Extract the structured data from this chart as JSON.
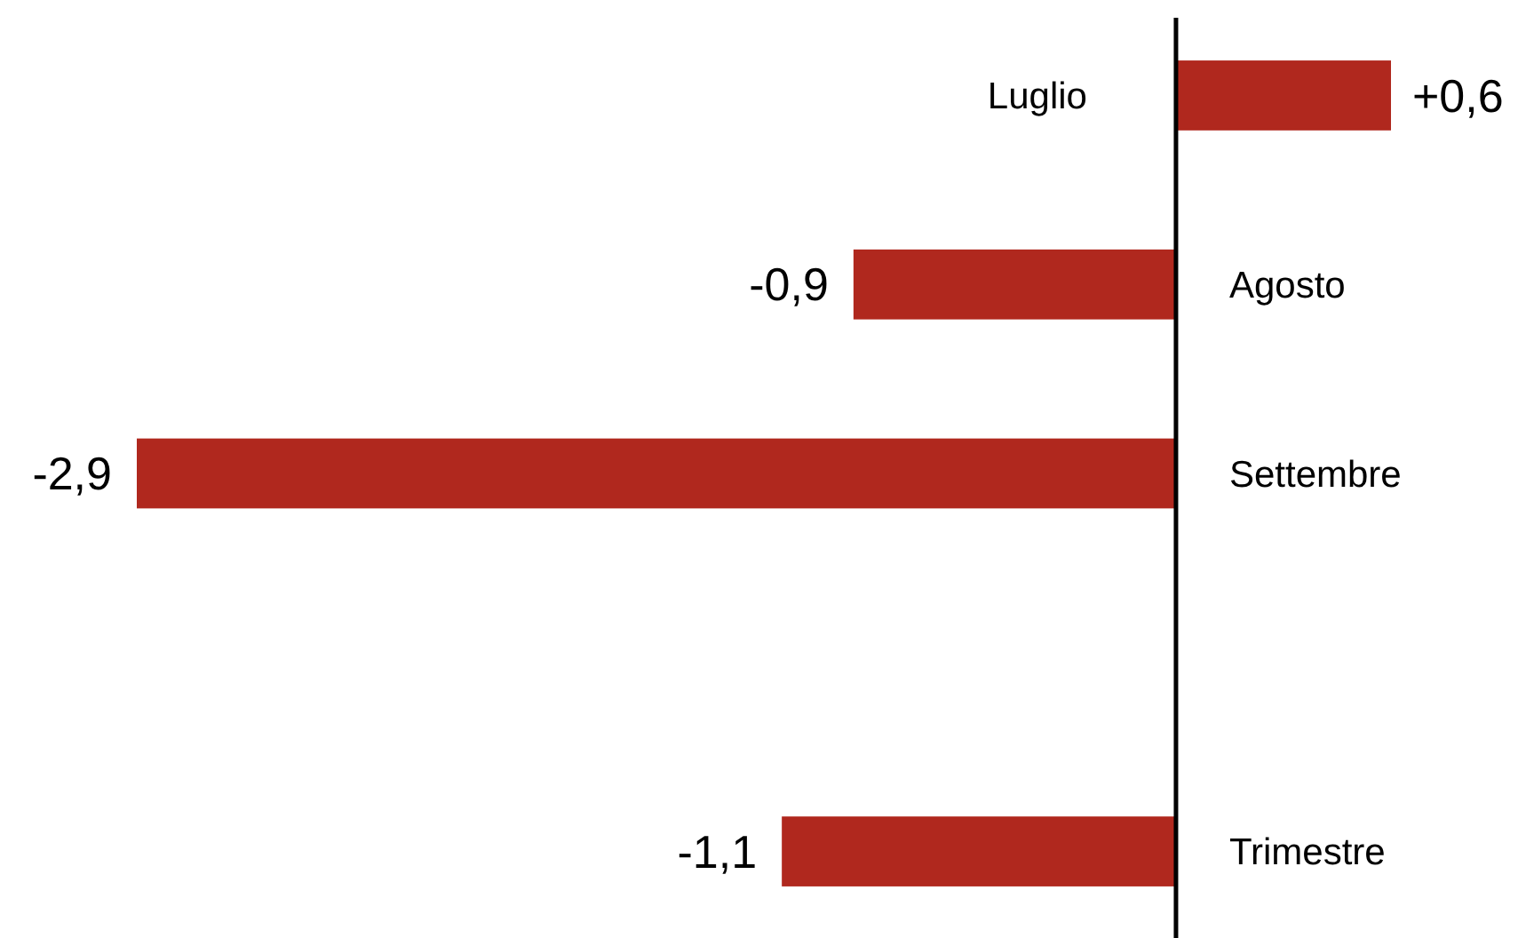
{
  "chart_data": {
    "type": "bar",
    "orientation": "horizontal",
    "categories": [
      "Luglio",
      "Agosto",
      "Settembre",
      null,
      "Trimestre"
    ],
    "values": [
      0.6,
      -0.9,
      -2.9,
      null,
      -1.1
    ],
    "value_labels": [
      "+0,6",
      "-0,9",
      "-2,9",
      null,
      "-1,1"
    ],
    "color": "#b0281e"
  }
}
